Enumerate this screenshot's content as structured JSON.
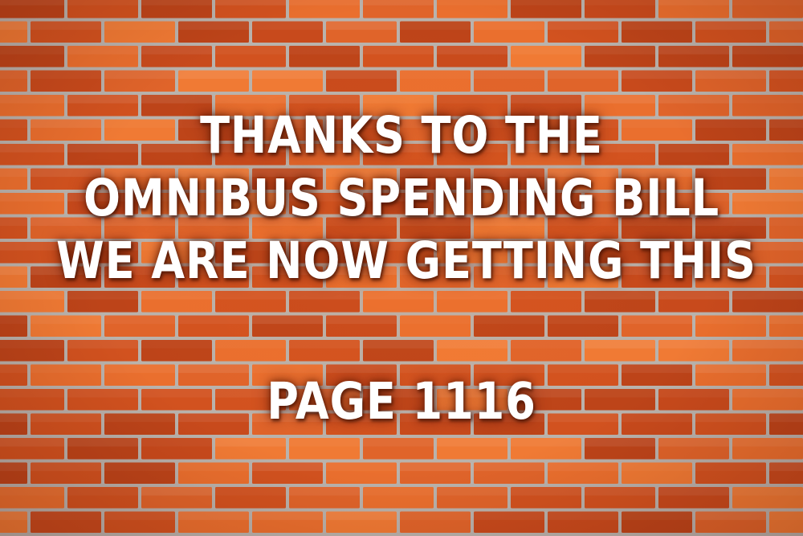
{
  "meme": {
    "headline_lines": [
      "THANKS TO THE",
      "OMNIBUS SPENDING BILL",
      "WE ARE NOW GETTING THIS"
    ],
    "page_reference": "PAGE 1116"
  },
  "background": {
    "subject": "red brick wall",
    "brick_colors": [
      "#d2521f",
      "#e0642a",
      "#bd4419",
      "#ea6f2e",
      "#c84a1c",
      "#f07a34"
    ],
    "mortar_color": "#b9b3ad"
  }
}
